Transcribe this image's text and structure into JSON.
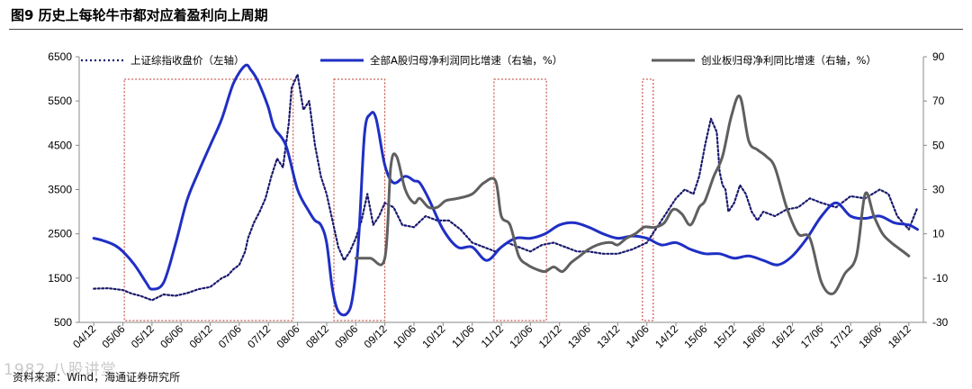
{
  "header": {
    "figure_title": "图9  历史上每轮牛市都对应着盈利向上周期"
  },
  "footer": {
    "source": "资料来源：Wind，海通证券研究所",
    "watermark": "1982 八股讲堂"
  },
  "colors": {
    "sse": "#1a1a6e",
    "a_share": "#1f2fc4",
    "chinext": "#5f5f5f",
    "highlight_box": "#c0392b"
  },
  "chart_data": {
    "type": "line",
    "title": "历史上每轮牛市都对应着盈利向上周期",
    "x_categories": [
      "04/12",
      "05/06",
      "05/12",
      "06/06",
      "06/12",
      "07/06",
      "07/12",
      "08/06",
      "08/12",
      "09/06",
      "09/12",
      "10/06",
      "10/12",
      "11/06",
      "11/12",
      "12/06",
      "12/12",
      "13/06",
      "13/12",
      "14/06",
      "14/12",
      "15/06",
      "15/12",
      "16/06",
      "16/12",
      "17/06",
      "17/12",
      "18/06",
      "18/12"
    ],
    "y_left": {
      "label": "上证综指收盘价",
      "range": [
        500,
        6500
      ],
      "ticks": [
        500,
        1500,
        2500,
        3500,
        4500,
        5500,
        6500
      ]
    },
    "y_right": {
      "label": "%",
      "range": [
        -30,
        90
      ],
      "ticks": [
        -30,
        -10,
        10,
        30,
        50,
        70,
        90
      ]
    },
    "legend": [
      {
        "key": "sse",
        "label": "上证综指收盘价（左轴）",
        "style": "dotted"
      },
      {
        "key": "a_share",
        "label": "全部A股归母净利润同比增速（右轴，%）",
        "style": "solid"
      },
      {
        "key": "chinext",
        "label": "创业板归母净利同比增速（右轴，%）",
        "style": "solid"
      }
    ],
    "series": [
      {
        "name": "上证综指收盘价（左轴）",
        "axis": "left",
        "x": [
          0,
          0.5,
          1,
          1.3,
          1.6,
          2,
          2.4,
          2.8,
          3.2,
          3.6,
          4,
          4.2,
          4.4,
          4.6,
          4.8,
          5,
          5.2,
          5.3,
          5.5,
          5.7,
          5.9,
          6.1,
          6.3,
          6.5,
          6.7,
          6.8,
          7.0,
          7.2,
          7.4,
          7.6,
          7.8,
          8,
          8.2,
          8.4,
          8.6,
          8.8,
          9,
          9.2,
          9.4,
          9.6,
          9.8,
          10,
          10.3,
          10.6,
          11,
          11.4,
          11.8,
          12.2,
          12.6,
          13,
          13.4,
          13.8,
          14.2,
          14.6,
          15,
          15.4,
          15.8,
          16.2,
          16.6,
          17,
          17.5,
          18,
          18.5,
          19,
          19.5,
          20,
          20.3,
          20.6,
          20.8,
          21,
          21.2,
          21.4,
          21.5,
          21.6,
          21.7,
          21.8,
          22,
          22.2,
          22.4,
          22.6,
          22.8,
          23,
          23.4,
          23.8,
          24.2,
          24.6,
          25,
          25.5,
          26,
          26.5,
          27,
          27.3,
          27.6,
          28,
          28.3
        ],
        "values": [
          1260,
          1270,
          1230,
          1150,
          1100,
          1000,
          1130,
          1100,
          1160,
          1250,
          1300,
          1400,
          1500,
          1560,
          1700,
          1800,
          2100,
          2400,
          2750,
          3000,
          3300,
          3800,
          4200,
          4000,
          5000,
          5800,
          6100,
          5300,
          5500,
          4500,
          3800,
          3400,
          2800,
          2200,
          1900,
          2100,
          2400,
          2800,
          3400,
          2700,
          2900,
          3200,
          3100,
          2700,
          2650,
          2900,
          2800,
          2800,
          2600,
          2300,
          2200,
          2100,
          2300,
          2200,
          2100,
          2250,
          2300,
          2200,
          2100,
          2100,
          2050,
          2050,
          2150,
          2300,
          2800,
          3300,
          3500,
          3400,
          3800,
          4500,
          5100,
          4800,
          3900,
          3600,
          3500,
          3000,
          3200,
          3600,
          3400,
          3000,
          2800,
          3000,
          2900,
          3050,
          3100,
          3300,
          3200,
          3100,
          3350,
          3300,
          3500,
          3400,
          2900,
          2600,
          3100
        ]
      },
      {
        "name": "全部A股归母净利润同比增速（右轴，%）",
        "axis": "right",
        "x": [
          0,
          0.3,
          0.7,
          1,
          1.4,
          1.8,
          2,
          2.4,
          2.8,
          3.2,
          3.6,
          4,
          4.4,
          4.8,
          5.2,
          5.4,
          5.6,
          5.8,
          6,
          6.2,
          6.6,
          7,
          7.4,
          7.6,
          7.8,
          8,
          8.2,
          8.4,
          8.7,
          8.9,
          9.1,
          9.3,
          9.5,
          9.7,
          10,
          10.3,
          10.7,
          11,
          11.2,
          11.5,
          12,
          12.5,
          13,
          13.5,
          14,
          14.5,
          15,
          15.5,
          16,
          16.5,
          17,
          17.5,
          18,
          18.5,
          19,
          19.5,
          20,
          20.5,
          21,
          21.5,
          22,
          22.5,
          23,
          23.5,
          24,
          24.5,
          25,
          25.5,
          26,
          26.5,
          27,
          27.5,
          28,
          28.3
        ],
        "values": [
          8,
          7,
          5,
          2,
          -4,
          -12,
          -15,
          -12,
          5,
          25,
          38,
          50,
          62,
          78,
          86,
          84,
          80,
          74,
          67,
          58,
          50,
          30,
          20,
          16,
          14,
          6,
          -15,
          -25,
          -26,
          -18,
          8,
          55,
          64,
          62,
          41,
          33,
          36,
          34,
          33,
          26,
          12,
          4,
          4,
          -2,
          4,
          8,
          8,
          10,
          14,
          15,
          13,
          10,
          8,
          9,
          8,
          5,
          6,
          3,
          1,
          1,
          -1,
          0,
          -2,
          -4,
          0,
          8,
          18,
          24,
          18,
          17,
          18,
          15,
          14,
          12
        ]
      },
      {
        "name": "创业板归母净利同比增速（右轴，%）",
        "axis": "right",
        "x": [
          9.0,
          9.5,
          10.0,
          10.2,
          10.4,
          10.7,
          11.0,
          11.2,
          11.5,
          11.8,
          12.1,
          12.5,
          13.0,
          13.4,
          13.8,
          14.0,
          14.3,
          14.6,
          14.9,
          15.2,
          15.5,
          15.8,
          16.1,
          16.4,
          16.7,
          17.0,
          17.3,
          17.6,
          17.8,
          18.0,
          18.3,
          18.6,
          18.9,
          19.1,
          19.3,
          19.6,
          19.9,
          20.2,
          20.5,
          20.8,
          21.0,
          21.3,
          21.6,
          21.9,
          22.2,
          22.5,
          22.8,
          23.1,
          23.4,
          23.8,
          24.2,
          24.6,
          25.0,
          25.4,
          25.8,
          26.2,
          26.5,
          26.8,
          27.1,
          27.4,
          27.7,
          28.0
        ],
        "values": [
          -1,
          -1,
          -1,
          40,
          45,
          30,
          24,
          26,
          22,
          22,
          25,
          26,
          28,
          33,
          34,
          18,
          14,
          0,
          -4,
          -6,
          -7,
          -5,
          -7,
          -3,
          0,
          3,
          5,
          6,
          6,
          5,
          8,
          10,
          13,
          13,
          13,
          15,
          21,
          19,
          14,
          22,
          25,
          36,
          45,
          63,
          72,
          52,
          48,
          45,
          40,
          22,
          10,
          8,
          -12,
          -17,
          -8,
          0,
          28,
          18,
          10,
          6,
          3,
          0
        ]
      }
    ],
    "highlight_periods": [
      {
        "from": 1.05,
        "to": 6.85
      },
      {
        "from": 8.25,
        "to": 10.0
      },
      {
        "from": 13.75,
        "to": 15.55
      },
      {
        "from": 18.85,
        "to": 19.1
      }
    ]
  }
}
